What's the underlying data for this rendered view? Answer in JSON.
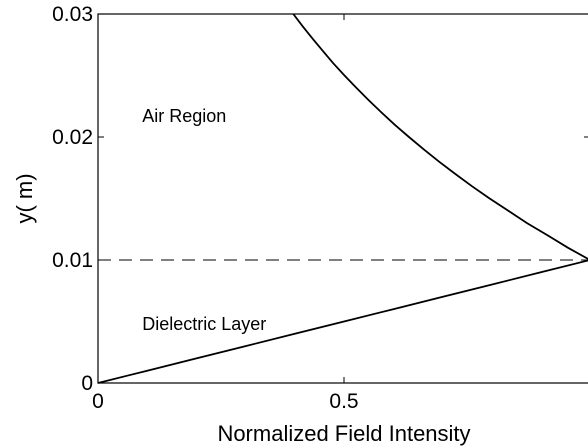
{
  "chart_data": {
    "type": "line",
    "xlabel": "Normalized Field Intensity",
    "ylabel": "y( m)",
    "xlim": [
      0,
      1
    ],
    "ylim": [
      0,
      0.03
    ],
    "x_ticks": [
      0,
      0.5,
      1
    ],
    "x_tick_labels": [
      "0",
      "0.5",
      ""
    ],
    "y_ticks": [
      0,
      0.01,
      0.02,
      0.03
    ],
    "y_tick_labels": [
      "0",
      "0.01",
      "0.02",
      "0.03"
    ],
    "grid": false,
    "line_color": "#000000",
    "series": [
      {
        "style": "solid",
        "points": [
          [
            0.0,
            0.0
          ],
          [
            0.1,
            0.001
          ],
          [
            0.2,
            0.002
          ],
          [
            0.3,
            0.003
          ],
          [
            0.4,
            0.004
          ],
          [
            0.5,
            0.005
          ],
          [
            0.6,
            0.006
          ],
          [
            0.7,
            0.007
          ],
          [
            0.8,
            0.008
          ],
          [
            0.9,
            0.009
          ],
          [
            1.0,
            0.01
          ],
          [
            0.955,
            0.011
          ],
          [
            0.914,
            0.012
          ],
          [
            0.872,
            0.013
          ],
          [
            0.834,
            0.014
          ],
          [
            0.796,
            0.015
          ],
          [
            0.76,
            0.016
          ],
          [
            0.726,
            0.017
          ],
          [
            0.693,
            0.018
          ],
          [
            0.662,
            0.019
          ],
          [
            0.632,
            0.02
          ],
          [
            0.603,
            0.021
          ],
          [
            0.576,
            0.022
          ],
          [
            0.55,
            0.023
          ],
          [
            0.525,
            0.024
          ],
          [
            0.501,
            0.025
          ],
          [
            0.478,
            0.026
          ],
          [
            0.457,
            0.027
          ],
          [
            0.436,
            0.028
          ],
          [
            0.416,
            0.029
          ],
          [
            0.397,
            0.03
          ]
        ]
      },
      {
        "style": "dashed",
        "points": [
          [
            0,
            0.01
          ],
          [
            1,
            0.01
          ]
        ]
      }
    ],
    "annotations": [
      {
        "text": "Air Region",
        "x": 0.09,
        "y": 0.0212
      },
      {
        "text": "Dielectric Layer",
        "x": 0.09,
        "y": 0.0043
      }
    ]
  }
}
